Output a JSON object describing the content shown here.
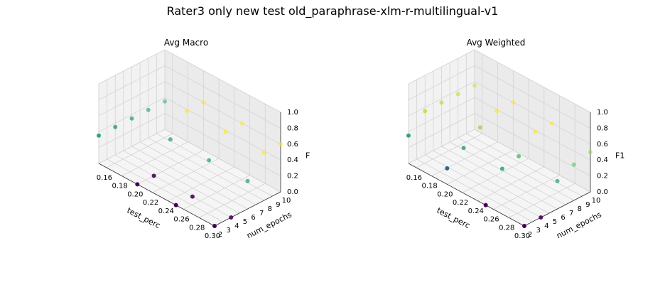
{
  "suptitle": "Rater3 only new test old_paraphrase-xlm-r-multilingual-v1",
  "chart_data": [
    {
      "type": "scatter",
      "title": "Avg Macro",
      "xlabel": "test_perc",
      "ylabel": "num_epochs",
      "zlabel": "F1",
      "xticks": [
        "0.16",
        "0.18",
        "0.20",
        "0.22",
        "0.24",
        "0.26",
        "0.28",
        "0.30"
      ],
      "yticks": [
        "2",
        "3",
        "4",
        "5",
        "6",
        "7",
        "8",
        "9",
        "10"
      ],
      "zticks": [
        "0.0",
        "0.2",
        "0.4",
        "0.6",
        "0.8",
        "1.0"
      ],
      "xlim": [
        0.15,
        0.3
      ],
      "ylim": [
        2,
        10
      ],
      "zlim": [
        0,
        1
      ],
      "grid": true,
      "colormap": "viridis",
      "points": [
        {
          "x": 0.15,
          "y": 2,
          "z": 0.35
        },
        {
          "x": 0.15,
          "y": 4,
          "z": 0.35
        },
        {
          "x": 0.15,
          "y": 6,
          "z": 0.35
        },
        {
          "x": 0.15,
          "y": 8,
          "z": 0.35
        },
        {
          "x": 0.15,
          "y": 10,
          "z": 0.35
        },
        {
          "x": 0.2,
          "y": 2,
          "z": 0.0
        },
        {
          "x": 0.2,
          "y": 4,
          "z": 0.0
        },
        {
          "x": 0.2,
          "y": 6,
          "z": 0.35
        },
        {
          "x": 0.2,
          "y": 8,
          "z": 0.6
        },
        {
          "x": 0.2,
          "y": 10,
          "z": 0.6
        },
        {
          "x": 0.25,
          "y": 2,
          "z": 0.0
        },
        {
          "x": 0.25,
          "y": 4,
          "z": 0.0
        },
        {
          "x": 0.25,
          "y": 6,
          "z": 0.35
        },
        {
          "x": 0.25,
          "y": 8,
          "z": 0.6
        },
        {
          "x": 0.25,
          "y": 10,
          "z": 0.6
        },
        {
          "x": 0.3,
          "y": 2,
          "z": 0.0
        },
        {
          "x": 0.3,
          "y": 4,
          "z": 0.0
        },
        {
          "x": 0.3,
          "y": 6,
          "z": 0.35
        },
        {
          "x": 0.3,
          "y": 8,
          "z": 0.6
        },
        {
          "x": 0.3,
          "y": 10,
          "z": 0.6
        }
      ]
    },
    {
      "type": "scatter",
      "title": "Avg Weighted",
      "xlabel": "test_perc",
      "ylabel": "num_epochs",
      "zlabel": "F1",
      "xticks": [
        "0.16",
        "0.18",
        "0.20",
        "0.22",
        "0.24",
        "0.26",
        "0.28",
        "0.30"
      ],
      "yticks": [
        "2",
        "3",
        "4",
        "5",
        "6",
        "7",
        "8",
        "9",
        "10"
      ],
      "zticks": [
        "0.0",
        "0.2",
        "0.4",
        "0.6",
        "0.8",
        "1.0"
      ],
      "xlim": [
        0.15,
        0.3
      ],
      "ylim": [
        2,
        10
      ],
      "zlim": [
        0,
        1
      ],
      "grid": true,
      "colormap": "viridis",
      "points": [
        {
          "x": 0.15,
          "y": 2,
          "z": 0.35
        },
        {
          "x": 0.15,
          "y": 4,
          "z": 0.55
        },
        {
          "x": 0.15,
          "y": 6,
          "z": 0.55
        },
        {
          "x": 0.15,
          "y": 8,
          "z": 0.55
        },
        {
          "x": 0.15,
          "y": 10,
          "z": 0.55
        },
        {
          "x": 0.2,
          "y": 2,
          "z": 0.2
        },
        {
          "x": 0.2,
          "y": 4,
          "z": 0.35
        },
        {
          "x": 0.2,
          "y": 6,
          "z": 0.5
        },
        {
          "x": 0.2,
          "y": 8,
          "z": 0.6
        },
        {
          "x": 0.2,
          "y": 10,
          "z": 0.6
        },
        {
          "x": 0.25,
          "y": 2,
          "z": 0.0
        },
        {
          "x": 0.25,
          "y": 4,
          "z": 0.35
        },
        {
          "x": 0.25,
          "y": 6,
          "z": 0.4
        },
        {
          "x": 0.25,
          "y": 8,
          "z": 0.6
        },
        {
          "x": 0.25,
          "y": 10,
          "z": 0.6
        },
        {
          "x": 0.3,
          "y": 2,
          "z": 0.0
        },
        {
          "x": 0.3,
          "y": 4,
          "z": 0.0
        },
        {
          "x": 0.3,
          "y": 6,
          "z": 0.35
        },
        {
          "x": 0.3,
          "y": 8,
          "z": 0.45
        },
        {
          "x": 0.3,
          "y": 10,
          "z": 0.5
        }
      ]
    }
  ]
}
